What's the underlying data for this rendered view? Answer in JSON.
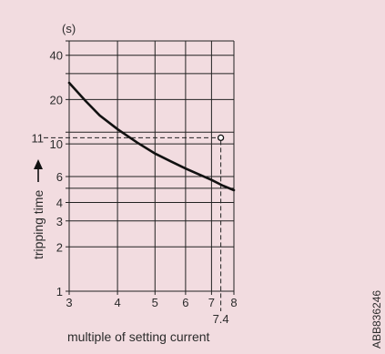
{
  "chart_data": {
    "type": "line",
    "title": "",
    "xlabel": "multiple of setting current",
    "ylabel": "tripping time",
    "y_unit": "(s)",
    "x_scale": "log",
    "y_scale": "log",
    "xlim": [
      3,
      8
    ],
    "ylim": [
      1,
      50
    ],
    "grid": true,
    "x_gridlines": [
      3,
      4,
      5,
      6,
      7,
      8
    ],
    "x_ticks": [
      {
        "value": 3,
        "label": "3"
      },
      {
        "value": 4,
        "label": "4"
      },
      {
        "value": 5,
        "label": "5"
      },
      {
        "value": 6,
        "label": "6"
      },
      {
        "value": 7,
        "label": "7"
      },
      {
        "value": 8,
        "label": "8"
      }
    ],
    "y_gridlines": [
      1,
      2,
      3,
      4,
      5,
      6,
      10,
      12,
      20,
      30,
      40,
      50
    ],
    "y_ticks": [
      {
        "value": 1,
        "label": "1"
      },
      {
        "value": 2,
        "label": "2"
      },
      {
        "value": 3,
        "label": "3"
      },
      {
        "value": 4,
        "label": "4"
      },
      {
        "value": 6,
        "label": "6"
      },
      {
        "value": 10,
        "label": "10"
      },
      {
        "value": 20,
        "label": "20"
      },
      {
        "value": 40,
        "label": "40"
      }
    ],
    "series": [
      {
        "x": [
          3.0,
          3.3,
          3.6,
          4.0,
          4.5,
          5.0,
          5.5,
          6.0,
          6.5,
          7.0,
          7.5,
          8.0
        ],
        "y": [
          26.0,
          19.7,
          15.6,
          12.6,
          10.2,
          8.6,
          7.6,
          6.8,
          6.2,
          5.7,
          5.2,
          4.85
        ]
      }
    ],
    "annotations": {
      "marker_point": {
        "x": 7.4,
        "y": 11
      },
      "x_marker_label": "7.4",
      "y_marker_label": "11"
    },
    "side_text": "ABB836246"
  }
}
